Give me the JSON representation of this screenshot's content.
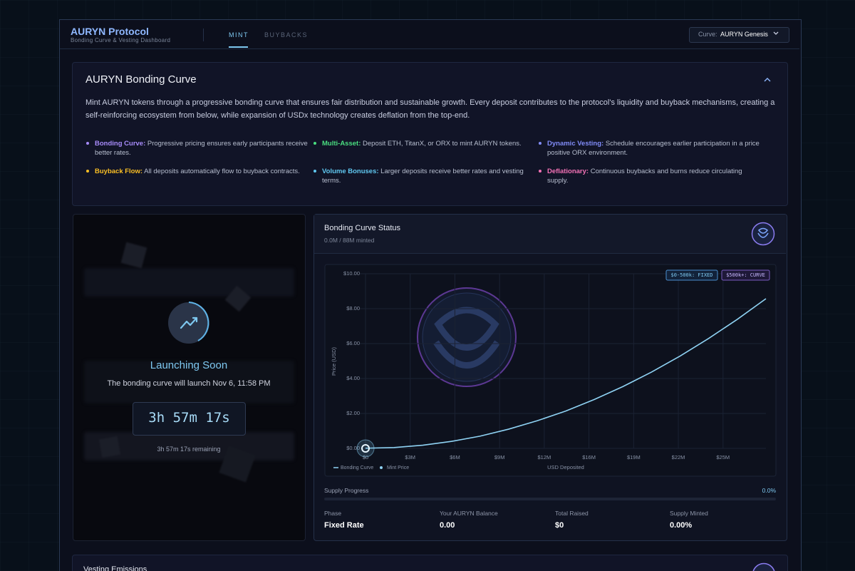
{
  "header": {
    "title": "AURYN Protocol",
    "subtitle": "Bonding Curve & Vesting Dashboard",
    "tabs": [
      "MINT",
      "BUYBACKS"
    ],
    "curve_label": "Curve:",
    "curve_value": "AURYN Genesis"
  },
  "intro": {
    "title": "AURYN Bonding Curve",
    "description": "Mint AURYN tokens through a progressive bonding curve that ensures fair distribution and sustainable growth. Every deposit contributes to the protocol's liquidity and buyback mechanisms, creating a self-reinforcing ecosystem from below, while expansion of USDx technology creates deflation from the top-end.",
    "features": [
      {
        "label": "Bonding Curve:",
        "text": "Progressive pricing ensures early participants receive better rates.",
        "color": "#a78bfa"
      },
      {
        "label": "Multi-Asset:",
        "text": "Deposit ETH, TitanX, or ORX to mint AURYN tokens.",
        "color": "#4ade80"
      },
      {
        "label": "Dynamic Vesting:",
        "text": "Schedule encourages earlier participation in a price positive ORX environment.",
        "color": "#818cf8"
      },
      {
        "label": "Buyback Flow:",
        "text": "All deposits automatically flow to buyback contracts.",
        "color": "#fbbf24"
      },
      {
        "label": "Volume Bonuses:",
        "text": "Larger deposits receive better rates and vesting terms.",
        "color": "#60c8f0"
      },
      {
        "label": "Deflationary:",
        "text": "Continuous buybacks and burns reduce circulating supply.",
        "color": "#f472b6"
      }
    ]
  },
  "launch": {
    "title": "Launching Soon",
    "subtitle": "The bonding curve will launch Nov 6, 11:58 PM",
    "countdown": "3h 57m 17s",
    "remaining": "3h 57m 17s remaining"
  },
  "status": {
    "title": "Bonding Curve Status",
    "subtitle": "0.0M / 88M minted",
    "chart": {
      "type": "line",
      "xlabel": "USD Deposited",
      "ylabel": "Price (USD)",
      "badges": [
        "$0-500k: FIXED",
        "$500k+: CURVE"
      ],
      "xlim": [
        0,
        28000000
      ],
      "ylim": [
        0,
        10
      ],
      "xticks": [
        {
          "value": 0,
          "label": "$0"
        },
        {
          "value": 3125000,
          "label": "$3M"
        },
        {
          "value": 6250000,
          "label": "$6M"
        },
        {
          "value": 9375000,
          "label": "$9M"
        },
        {
          "value": 12500000,
          "label": "$12M"
        },
        {
          "value": 15625000,
          "label": "$16M"
        },
        {
          "value": 18750000,
          "label": "$19M"
        },
        {
          "value": 21875000,
          "label": "$22M"
        },
        {
          "value": 25000000,
          "label": "$25M"
        }
      ],
      "yticks": [
        {
          "value": 0,
          "label": "$0.00"
        },
        {
          "value": 2,
          "label": "$2.00"
        },
        {
          "value": 4,
          "label": "$4.00"
        },
        {
          "value": 6,
          "label": "$6.00"
        },
        {
          "value": 8,
          "label": "$8.00"
        },
        {
          "value": 10,
          "label": "$10.00"
        }
      ],
      "grid": true,
      "series": [
        {
          "name": "Bonding Curve",
          "color": "#8fd3f4",
          "x": [
            0,
            2000000,
            4000000,
            6000000,
            8000000,
            10000000,
            12000000,
            14000000,
            16000000,
            18000000,
            20000000,
            22000000,
            24000000,
            26000000,
            28000000
          ],
          "values": [
            0.01,
            0.05,
            0.18,
            0.4,
            0.7,
            1.1,
            1.58,
            2.14,
            2.8,
            3.54,
            4.37,
            5.29,
            6.3,
            7.39,
            8.57
          ]
        },
        {
          "name": "Mint Price",
          "color": "#8fd3f4",
          "x": [
            0
          ],
          "values": [
            0
          ]
        }
      ]
    },
    "progress_label": "Supply Progress",
    "progress_value": "0.0%",
    "stats": [
      {
        "label": "Phase",
        "value": "Fixed Rate"
      },
      {
        "label": "Your AURYN Balance",
        "value": "0.00"
      },
      {
        "label": "Total Raised",
        "value": "$0"
      },
      {
        "label": "Supply Minted",
        "value": "0.00%"
      }
    ]
  },
  "vesting": {
    "title": "Vesting Emissions"
  }
}
